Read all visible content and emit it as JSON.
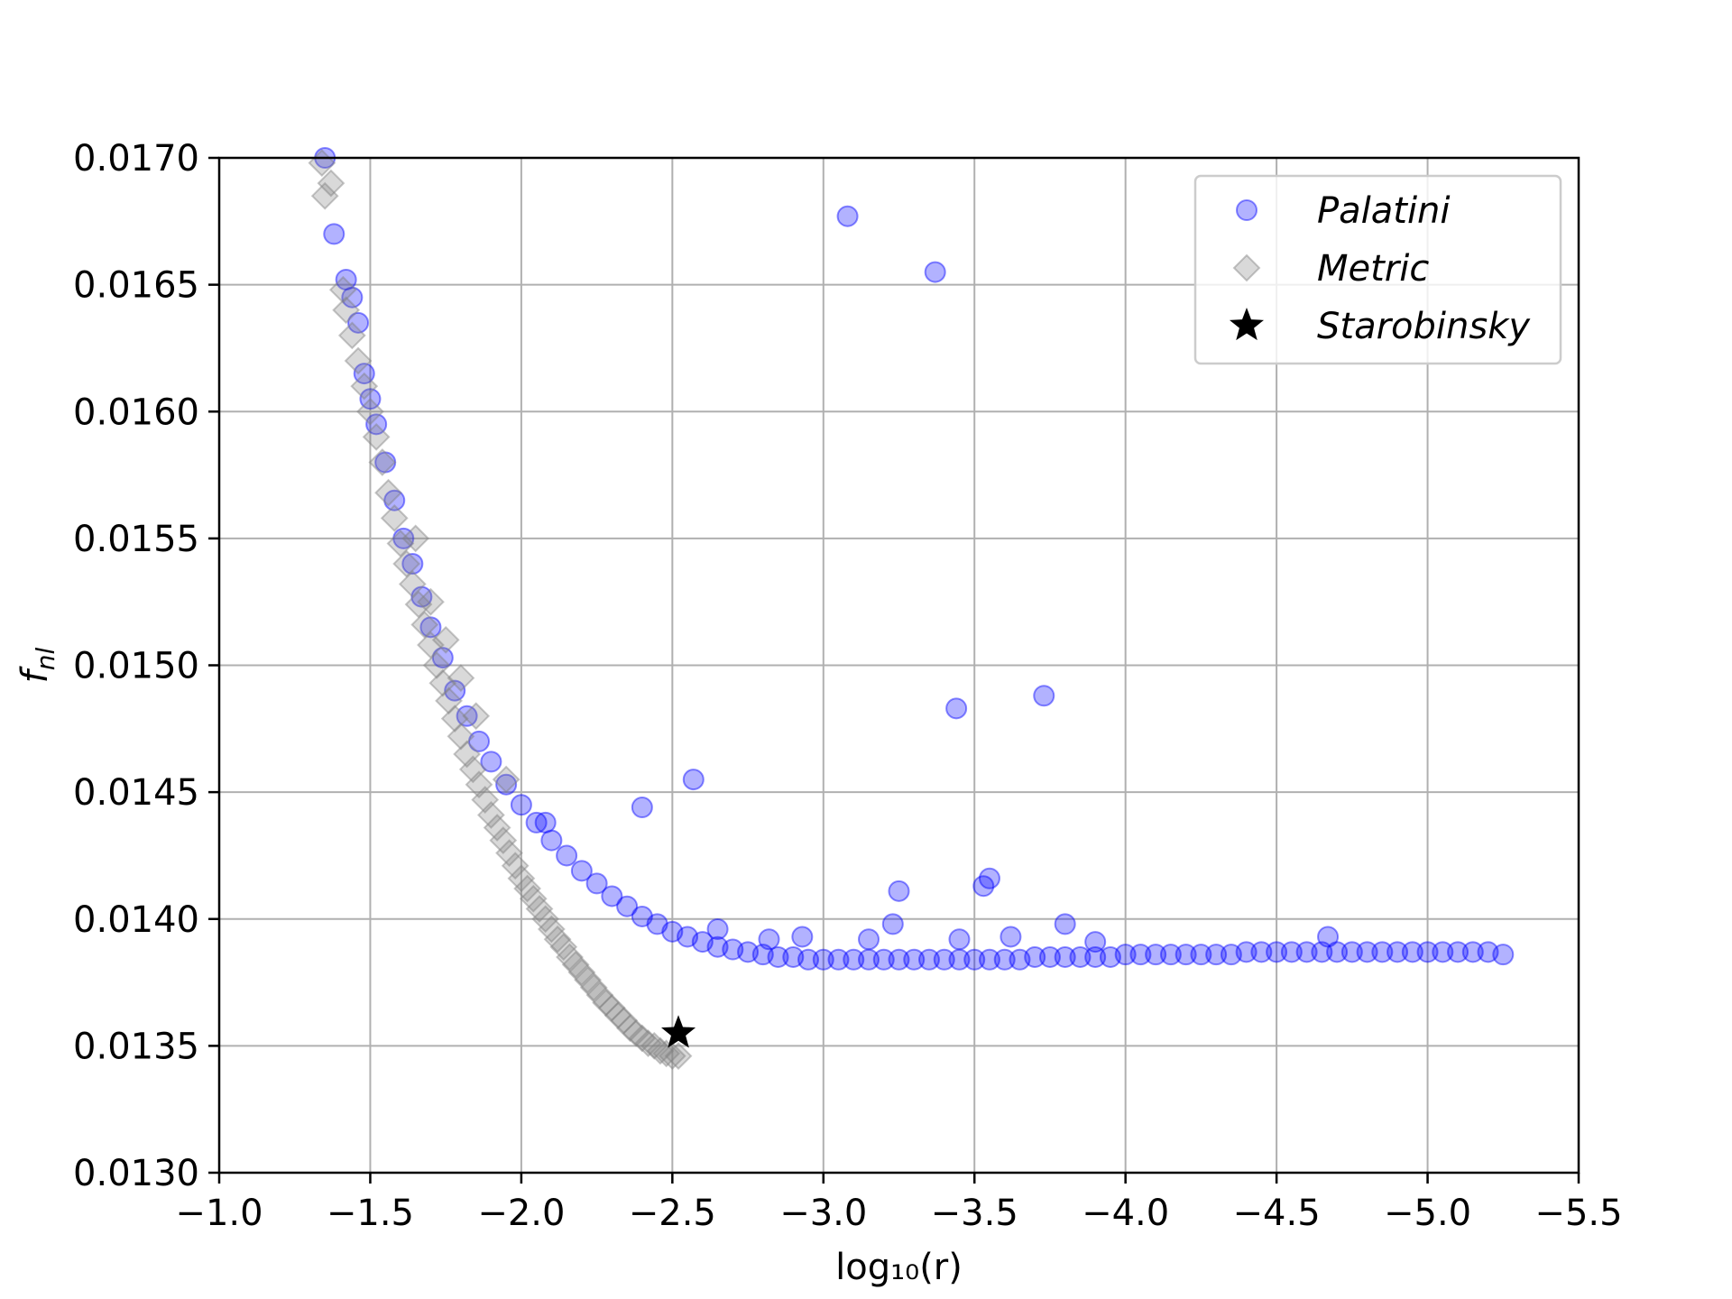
{
  "chart_data": {
    "type": "scatter",
    "xlabel": "log₁₀(r)",
    "ylabel": "f_nl",
    "ylabel_main": "f",
    "ylabel_sub": "nl",
    "xlim": [
      -1.0,
      -5.5
    ],
    "ylim": [
      0.013,
      0.017
    ],
    "x_inverted": true,
    "x_ticks": [
      -1.0,
      -1.5,
      -2.0,
      -2.5,
      -3.0,
      -3.5,
      -4.0,
      -4.5,
      -5.0,
      -5.5
    ],
    "x_tick_labels": [
      "−1.0",
      "−1.5",
      "−2.0",
      "−2.5",
      "−3.0",
      "−3.5",
      "−4.0",
      "−4.5",
      "−5.0",
      "−5.5"
    ],
    "y_ticks": [
      0.013,
      0.0135,
      0.014,
      0.0145,
      0.015,
      0.0155,
      0.016,
      0.0165,
      0.017
    ],
    "y_tick_labels": [
      "0.0130",
      "0.0135",
      "0.0140",
      "0.0145",
      "0.0150",
      "0.0155",
      "0.0160",
      "0.0165",
      "0.0170"
    ],
    "grid": true,
    "legend_position": "top-right",
    "series": [
      {
        "name": "Palatini",
        "marker": "circle",
        "color": "#0000ff",
        "opacity": 0.3,
        "points": [
          [
            -1.35,
            0.017
          ],
          [
            -1.38,
            0.0167
          ],
          [
            -1.42,
            0.01652
          ],
          [
            -1.44,
            0.01645
          ],
          [
            -1.46,
            0.01635
          ],
          [
            -1.48,
            0.01615
          ],
          [
            -1.5,
            0.01605
          ],
          [
            -1.52,
            0.01595
          ],
          [
            -1.55,
            0.0158
          ],
          [
            -1.58,
            0.01565
          ],
          [
            -1.61,
            0.0155
          ],
          [
            -1.64,
            0.0154
          ],
          [
            -1.67,
            0.01527
          ],
          [
            -1.7,
            0.01515
          ],
          [
            -1.74,
            0.01503
          ],
          [
            -1.78,
            0.0149
          ],
          [
            -1.82,
            0.0148
          ],
          [
            -1.86,
            0.0147
          ],
          [
            -1.9,
            0.01462
          ],
          [
            -1.95,
            0.01453
          ],
          [
            -2.0,
            0.01445
          ],
          [
            -2.05,
            0.01438
          ],
          [
            -2.1,
            0.01431
          ],
          [
            -2.15,
            0.01425
          ],
          [
            -2.2,
            0.01419
          ],
          [
            -2.25,
            0.01414
          ],
          [
            -2.3,
            0.01409
          ],
          [
            -2.35,
            0.01405
          ],
          [
            -2.4,
            0.01401
          ],
          [
            -2.45,
            0.01398
          ],
          [
            -2.5,
            0.01395
          ],
          [
            -2.55,
            0.01393
          ],
          [
            -2.6,
            0.01391
          ],
          [
            -2.65,
            0.01389
          ],
          [
            -2.7,
            0.01388
          ],
          [
            -2.75,
            0.01387
          ],
          [
            -2.8,
            0.01386
          ],
          [
            -2.85,
            0.01385
          ],
          [
            -2.9,
            0.01385
          ],
          [
            -2.95,
            0.01384
          ],
          [
            -3.0,
            0.01384
          ],
          [
            -3.05,
            0.01384
          ],
          [
            -3.1,
            0.01384
          ],
          [
            -3.15,
            0.01384
          ],
          [
            -3.2,
            0.01384
          ],
          [
            -3.25,
            0.01384
          ],
          [
            -3.3,
            0.01384
          ],
          [
            -3.35,
            0.01384
          ],
          [
            -3.4,
            0.01384
          ],
          [
            -3.45,
            0.01384
          ],
          [
            -3.5,
            0.01384
          ],
          [
            -3.55,
            0.01384
          ],
          [
            -3.6,
            0.01384
          ],
          [
            -3.65,
            0.01384
          ],
          [
            -3.7,
            0.01385
          ],
          [
            -3.75,
            0.01385
          ],
          [
            -3.8,
            0.01385
          ],
          [
            -3.85,
            0.01385
          ],
          [
            -3.9,
            0.01385
          ],
          [
            -3.95,
            0.01385
          ],
          [
            -4.0,
            0.01386
          ],
          [
            -4.05,
            0.01386
          ],
          [
            -4.1,
            0.01386
          ],
          [
            -4.15,
            0.01386
          ],
          [
            -4.2,
            0.01386
          ],
          [
            -4.25,
            0.01386
          ],
          [
            -4.3,
            0.01386
          ],
          [
            -4.35,
            0.01386
          ],
          [
            -4.4,
            0.01387
          ],
          [
            -4.45,
            0.01387
          ],
          [
            -4.5,
            0.01387
          ],
          [
            -4.55,
            0.01387
          ],
          [
            -4.6,
            0.01387
          ],
          [
            -4.65,
            0.01387
          ],
          [
            -4.7,
            0.01387
          ],
          [
            -4.75,
            0.01387
          ],
          [
            -4.8,
            0.01387
          ],
          [
            -4.85,
            0.01387
          ],
          [
            -4.9,
            0.01387
          ],
          [
            -4.95,
            0.01387
          ],
          [
            -5.0,
            0.01387
          ],
          [
            -5.05,
            0.01387
          ],
          [
            -5.1,
            0.01387
          ],
          [
            -5.15,
            0.01387
          ],
          [
            -5.2,
            0.01387
          ],
          [
            -5.25,
            0.01386
          ],
          [
            -3.08,
            0.01677
          ],
          [
            -3.37,
            0.01655
          ],
          [
            -3.44,
            0.01483
          ],
          [
            -3.73,
            0.01488
          ],
          [
            -2.57,
            0.01455
          ],
          [
            -2.4,
            0.01444
          ],
          [
            -3.25,
            0.01411
          ],
          [
            -3.55,
            0.01416
          ],
          [
            -3.53,
            0.01413
          ],
          [
            -3.23,
            0.01398
          ],
          [
            -3.8,
            0.01398
          ],
          [
            -3.15,
            0.01392
          ],
          [
            -3.45,
            0.01392
          ],
          [
            -3.62,
            0.01393
          ],
          [
            -3.9,
            0.01391
          ],
          [
            -4.67,
            0.01393
          ],
          [
            -2.93,
            0.01393
          ],
          [
            -2.82,
            0.01392
          ],
          [
            -2.65,
            0.01396
          ],
          [
            -2.08,
            0.01438
          ]
        ]
      },
      {
        "name": "Metric",
        "marker": "diamond",
        "color": "#808080",
        "opacity": 0.3,
        "points": [
          [
            -1.34,
            0.01698
          ],
          [
            -1.35,
            0.01685
          ],
          [
            -1.37,
            0.0169
          ],
          [
            -1.41,
            0.01648
          ],
          [
            -1.42,
            0.0164
          ],
          [
            -1.44,
            0.0163
          ],
          [
            -1.46,
            0.0162
          ],
          [
            -1.48,
            0.0161
          ],
          [
            -1.5,
            0.016
          ],
          [
            -1.52,
            0.0159
          ],
          [
            -1.54,
            0.0158
          ],
          [
            -1.56,
            0.01568
          ],
          [
            -1.58,
            0.01558
          ],
          [
            -1.6,
            0.01548
          ],
          [
            -1.62,
            0.0154
          ],
          [
            -1.64,
            0.01532
          ],
          [
            -1.66,
            0.01524
          ],
          [
            -1.68,
            0.01516
          ],
          [
            -1.7,
            0.01508
          ],
          [
            -1.72,
            0.015
          ],
          [
            -1.74,
            0.01493
          ],
          [
            -1.76,
            0.01486
          ],
          [
            -1.78,
            0.01479
          ],
          [
            -1.8,
            0.01472
          ],
          [
            -1.82,
            0.01465
          ],
          [
            -1.84,
            0.01459
          ],
          [
            -1.86,
            0.01453
          ],
          [
            -1.88,
            0.01447
          ],
          [
            -1.9,
            0.01441
          ],
          [
            -1.92,
            0.01436
          ],
          [
            -1.94,
            0.01431
          ],
          [
            -1.96,
            0.01426
          ],
          [
            -1.98,
            0.01421
          ],
          [
            -2.0,
            0.01416
          ],
          [
            -2.02,
            0.01412
          ],
          [
            -2.04,
            0.01408
          ],
          [
            -2.06,
            0.01404
          ],
          [
            -2.08,
            0.014
          ],
          [
            -2.1,
            0.01396
          ],
          [
            -2.12,
            0.01392
          ],
          [
            -2.14,
            0.01389
          ],
          [
            -2.16,
            0.01385
          ],
          [
            -2.18,
            0.01382
          ],
          [
            -2.2,
            0.01379
          ],
          [
            -2.22,
            0.01376
          ],
          [
            -2.24,
            0.01373
          ],
          [
            -2.26,
            0.0137
          ],
          [
            -2.28,
            0.01367
          ],
          [
            -2.3,
            0.01365
          ],
          [
            -2.32,
            0.01362
          ],
          [
            -2.34,
            0.0136
          ],
          [
            -2.36,
            0.01357
          ],
          [
            -2.38,
            0.01355
          ],
          [
            -2.4,
            0.01353
          ],
          [
            -2.42,
            0.01351
          ],
          [
            -2.44,
            0.0135
          ],
          [
            -2.46,
            0.01348
          ],
          [
            -2.48,
            0.01347
          ],
          [
            -2.5,
            0.01346
          ],
          [
            -2.52,
            0.01346
          ],
          [
            -1.65,
            0.0155
          ],
          [
            -1.7,
            0.01525
          ],
          [
            -1.75,
            0.0151
          ],
          [
            -1.8,
            0.01495
          ],
          [
            -1.85,
            0.0148
          ],
          [
            -1.95,
            0.01455
          ]
        ]
      },
      {
        "name": "Starobinsky",
        "marker": "star",
        "color": "#000000",
        "opacity": 1,
        "points": [
          [
            -2.52,
            0.01355
          ]
        ]
      }
    ]
  }
}
